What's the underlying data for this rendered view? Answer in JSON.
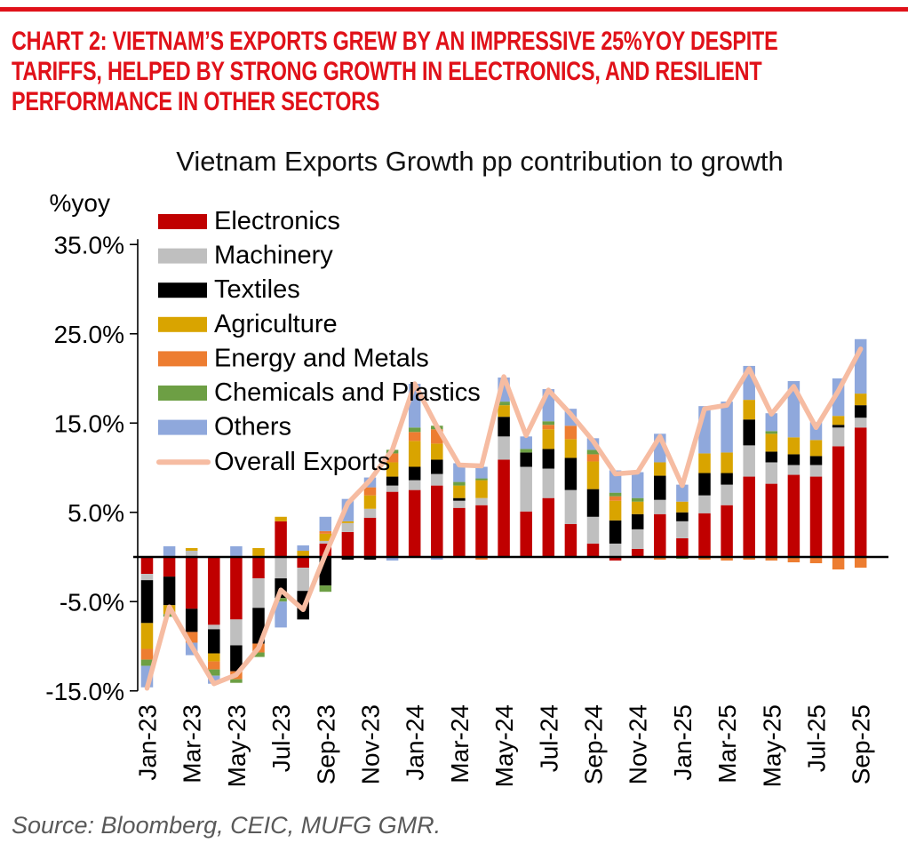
{
  "page": {
    "heading_lines": [
      "CHART 2: VIETNAM’S EXPORTS GREW BY AN IMPRESSIVE 25%YOY DESPITE",
      "TARIFFS, HELPED BY STRONG GROWTH IN ELECTRONICS, AND RESILIENT",
      "PERFORMANCE IN OTHER SECTORS"
    ],
    "heading_color": "#E01119",
    "top_rule_color": "#E01119",
    "source": "Source: Bloomberg, CEIC, MUFG GMR."
  },
  "chart_data": {
    "type": "bar",
    "stacked": true,
    "title": "Vietnam Exports Growth pp contribution to growth",
    "ylabel": "%yoy",
    "xlabel": "",
    "ylim": [
      -15,
      35
    ],
    "grid": false,
    "legend_position": "upper-left-inside",
    "yticks": [
      35,
      25,
      15,
      5,
      -5,
      -15
    ],
    "ytick_labels": [
      "35.0%",
      "25.0%",
      "15.0%",
      "5.0%",
      "-5.0%",
      "-15.0%"
    ],
    "categories": [
      "Jan-23",
      "Feb-23",
      "Mar-23",
      "Apr-23",
      "May-23",
      "Jun-23",
      "Jul-23",
      "Aug-23",
      "Sep-23",
      "Oct-23",
      "Nov-23",
      "Dec-23",
      "Jan-24",
      "Feb-24",
      "Mar-24",
      "Apr-24",
      "May-24",
      "Jun-24",
      "Jul-24",
      "Aug-24",
      "Sep-24",
      "Oct-24",
      "Nov-24",
      "Dec-24",
      "Jan-25",
      "Feb-25",
      "Mar-25",
      "Apr-25",
      "May-25",
      "Jun-25",
      "Jul-25",
      "Aug-25",
      "Sep-25"
    ],
    "xtick_shown_every": 2,
    "series": [
      {
        "key": "electronics",
        "name": "Electronics",
        "color": "#C00000",
        "values": [
          -1.9,
          -2.2,
          -5.8,
          -7.6,
          -7.0,
          -2.4,
          4.0,
          -1.2,
          1.5,
          2.8,
          4.4,
          7.3,
          7.5,
          8.0,
          5.5,
          5.8,
          10.9,
          5.1,
          6.6,
          3.7,
          1.5,
          -0.4,
          0.9,
          4.8,
          2.1,
          4.9,
          5.8,
          9.0,
          8.2,
          9.2,
          9.0,
          12.4,
          14.5
        ]
      },
      {
        "key": "machinery",
        "name": "Machinery",
        "color": "#BFBFBF",
        "values": [
          -0.7,
          0,
          0.7,
          -0.5,
          -2.9,
          -3.3,
          -2.4,
          -2.6,
          0.3,
          1.0,
          1.0,
          0.7,
          1.1,
          1.3,
          0.8,
          0.8,
          2.6,
          5.0,
          3.3,
          3.8,
          3.0,
          1.5,
          2.2,
          1.6,
          1.9,
          2.0,
          2.3,
          3.5,
          2.4,
          1.1,
          1.3,
          2.1,
          1.1
        ]
      },
      {
        "key": "textiles",
        "name": "Textiles",
        "color": "#000000",
        "values": [
          -4.8,
          -3.2,
          -2.6,
          -2.7,
          -2.9,
          -4.0,
          -2.2,
          -3.2,
          -3.2,
          -0.3,
          -0.3,
          1.0,
          1.5,
          1.6,
          0.3,
          0,
          2.2,
          1.6,
          2.2,
          3.6,
          3.1,
          2.6,
          1.7,
          2.7,
          1.0,
          2.5,
          1.3,
          2.9,
          1.2,
          1.2,
          1.0,
          0.3,
          1.4
        ]
      },
      {
        "key": "agriculture",
        "name": "Agriculture",
        "color": "#D9A400",
        "values": [
          -2.9,
          -1.0,
          0.3,
          -0.9,
          0,
          1.0,
          0.5,
          0.7,
          0.8,
          0.2,
          1.5,
          1.6,
          2.9,
          1.8,
          1.4,
          2.0,
          1.3,
          0,
          2.2,
          2.1,
          3.1,
          2.2,
          1.4,
          1.5,
          1.2,
          2.2,
          2.3,
          2.2,
          2.0,
          1.9,
          1.8,
          1.0,
          1.3
        ]
      },
      {
        "key": "energy_metals",
        "name": "Energy and Metals",
        "color": "#ED7D31",
        "values": [
          -1.2,
          0,
          -1.2,
          -0.9,
          -0.9,
          -1.0,
          0,
          0,
          0.3,
          0,
          0.9,
          1.0,
          1.0,
          1.6,
          0,
          -0.3,
          0,
          0,
          0.5,
          1.5,
          0.8,
          0.5,
          0,
          -0.3,
          0,
          -0.3,
          -0.4,
          -0.3,
          -0.4,
          -0.6,
          -0.7,
          -1.4,
          -1.2
        ]
      },
      {
        "key": "chemicals_plastics",
        "name": "Chemicals and Plastics",
        "color": "#6D9F44",
        "values": [
          -0.7,
          -0.3,
          0,
          -0.7,
          -0.4,
          -0.5,
          -0.4,
          0,
          -0.7,
          0,
          0,
          0.4,
          0.5,
          0.4,
          0.4,
          0.2,
          0.4,
          0.4,
          0.4,
          0,
          0.5,
          0.4,
          0.4,
          0,
          -0.2,
          0,
          0,
          0,
          0.3,
          0,
          0,
          0,
          0
        ]
      },
      {
        "key": "others",
        "name": "Others",
        "color": "#8FA8DC",
        "values": [
          -2.4,
          1.2,
          -1.4,
          -0.9,
          1.2,
          0,
          -2.9,
          0.6,
          1.6,
          2.5,
          1.1,
          -0.4,
          4.9,
          -0.3,
          2.1,
          1.3,
          2.7,
          1.4,
          3.6,
          1.9,
          1.3,
          2.5,
          2.9,
          3.2,
          1.9,
          5.3,
          5.7,
          3.8,
          2.0,
          6.3,
          2.0,
          4.2,
          6.1
        ]
      }
    ],
    "line_series": {
      "key": "overall_exports",
      "name": "Overall Exports",
      "color": "#F6BCA2",
      "values": [
        -14.7,
        -5.6,
        -10.0,
        -14.2,
        -13.2,
        -10.2,
        -3.7,
        -5.9,
        0.3,
        6.0,
        8.6,
        12.0,
        19.4,
        14.6,
        10.3,
        10.2,
        20.2,
        13.6,
        18.7,
        16.0,
        13.0,
        9.3,
        9.5,
        13.5,
        8.0,
        16.6,
        17.0,
        21.1,
        16.0,
        19.1,
        14.5,
        18.6,
        23.3
      ]
    }
  }
}
